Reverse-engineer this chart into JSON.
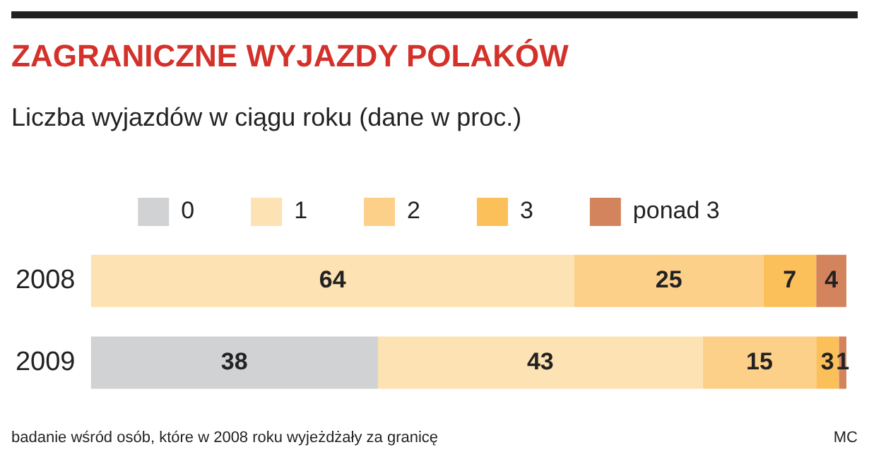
{
  "chart_data": {
    "type": "bar",
    "orientation": "horizontal",
    "stacked": true,
    "title": "ZAGRANICZNE WYJAZDY POLAKÓW",
    "subtitle": "Liczba wyjazdów w ciągu roku (dane w proc.)",
    "categories": [
      "2008",
      "2009"
    ],
    "series": [
      {
        "name": "0",
        "color": "#d1d2d4",
        "values": [
          0,
          38
        ],
        "value_labels": [
          null,
          "38"
        ]
      },
      {
        "name": "1",
        "color": "#fde2b3",
        "values": [
          64,
          43
        ],
        "value_labels": [
          "64",
          "43"
        ]
      },
      {
        "name": "2",
        "color": "#fdd08a",
        "values": [
          25,
          15
        ],
        "value_labels": [
          "25",
          "15"
        ]
      },
      {
        "name": "3",
        "color": "#fcc05a",
        "values": [
          7,
          3
        ],
        "value_labels": [
          "7",
          "3"
        ]
      },
      {
        "name": "ponad 3",
        "color": "#d4845c",
        "values": [
          4,
          1
        ],
        "value_labels": [
          "4",
          "1"
        ]
      }
    ],
    "legend": "top",
    "grid": false,
    "tick_labels": "y",
    "annotations": [
      "badanie wśród osób, które w 2008 roku wyjeżdżały za granicę",
      "MC"
    ]
  }
}
